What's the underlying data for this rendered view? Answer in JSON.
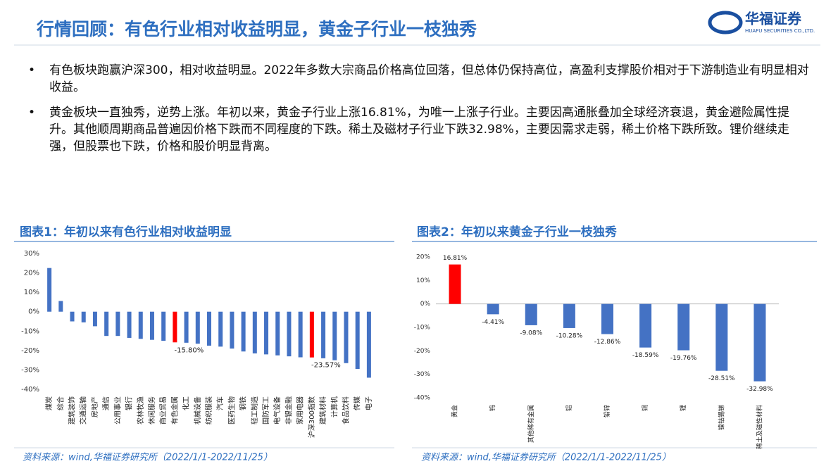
{
  "header": {
    "title": "行情回顾：有色行业相对收益明显，黄金子行业一枝独秀",
    "logo_name": "华福证券",
    "logo_sub": "HUAFU SECURITIES CO.,LTD."
  },
  "bullets": [
    "有色板块跑赢沪深300，相对收益明显。2022年多数大宗商品价格高位回落，但总体仍保持高位，高盈利支撑股价相对于下游制造业有明显相对收益。",
    "黄金板块一直独秀，逆势上涨。年初以来，黄金子行业上涨16.81%，为唯一上涨子行业。主要因高通胀叠加全球经济衰退，黄金避险属性提升。其他顺周期商品普遍因价格下跌而不同程度的下跌。稀土及磁材子行业下跌32.98%，主要因需求走弱，稀土价格下跌所致。锂价继续走强，但股票也下跌，价格和股价明显背离。"
  ],
  "chart_data": [
    {
      "type": "bar",
      "title": "图表1：年初以来有色行业相对收益明显",
      "source": "资料来源：wind,华福证券研究所（2022/1/1-2022/11/25）",
      "categories": [
        "煤炭",
        "综合",
        "建筑装饰",
        "交通运输",
        "房地产",
        "通信",
        "公用事业",
        "银行",
        "农林牧渔",
        "休闲服务",
        "商业贸易",
        "有色金属",
        "化工",
        "机械设备",
        "纺织服装",
        "汽车",
        "医药生物",
        "钢铁",
        "轻工制造",
        "国防军工",
        "电气设备",
        "非银金融",
        "家用电器",
        "沪深300指数",
        "建筑材料",
        "计算机",
        "食品饮料",
        "传媒",
        "电子"
      ],
      "values": [
        22.5,
        5.5,
        -5,
        -5.5,
        -7.5,
        -12.5,
        -12.5,
        -13.5,
        -14,
        -14.5,
        -15,
        -15.8,
        -16,
        -16.5,
        -17.5,
        -18,
        -19,
        -20.5,
        -21.5,
        -22,
        -22.5,
        -23,
        -23.5,
        -23.57,
        -24,
        -25,
        -26.5,
        -29.5,
        -34
      ],
      "value_labels": [
        null,
        null,
        null,
        null,
        null,
        null,
        null,
        null,
        null,
        null,
        null,
        "-15.80%",
        null,
        null,
        null,
        null,
        null,
        null,
        null,
        null,
        null,
        null,
        null,
        "-23.57%",
        null,
        null,
        null,
        null,
        null
      ],
      "colors": [
        "#4472c4",
        "#4472c4",
        "#4472c4",
        "#4472c4",
        "#4472c4",
        "#4472c4",
        "#4472c4",
        "#4472c4",
        "#4472c4",
        "#4472c4",
        "#4472c4",
        "#ff0000",
        "#4472c4",
        "#4472c4",
        "#4472c4",
        "#4472c4",
        "#4472c4",
        "#4472c4",
        "#4472c4",
        "#4472c4",
        "#4472c4",
        "#4472c4",
        "#4472c4",
        "#ff0000",
        "#4472c4",
        "#4472c4",
        "#4472c4",
        "#4472c4",
        "#4472c4"
      ],
      "ylim": [
        -40,
        30
      ],
      "yticks": [
        {
          "value": 30,
          "label": "30%"
        },
        {
          "value": 20,
          "label": "20%"
        },
        {
          "value": 10,
          "label": "10%"
        },
        {
          "value": 0,
          "label": "0%"
        },
        {
          "value": -10,
          "label": "-10%"
        },
        {
          "value": -20,
          "label": "-20%"
        },
        {
          "value": -30,
          "label": "-30%"
        },
        {
          "value": -40,
          "label": "-40%"
        }
      ]
    },
    {
      "type": "bar",
      "title": "图表2：年初以来黄金子行业一枝独秀",
      "source": "资料来源：wind,华福证券研究所（2022/1/1-2022/11/25）",
      "categories": [
        "黄金",
        "钨",
        "其他稀有金属",
        "铝",
        "铅锌",
        "铜",
        "锂",
        "镍钴锡锑",
        "稀土及磁性材料"
      ],
      "values": [
        16.81,
        -4.41,
        -9.08,
        -10.28,
        -12.86,
        -18.59,
        -19.76,
        -28.51,
        -32.98
      ],
      "value_labels": [
        "16.81%",
        "-4.41%",
        "-9.08%",
        "-10.28%",
        "-12.86%",
        "-18.59%",
        "-19.76%",
        "-28.51%",
        "-32.98%"
      ],
      "colors": [
        "#ff0000",
        "#4472c4",
        "#4472c4",
        "#4472c4",
        "#4472c4",
        "#4472c4",
        "#4472c4",
        "#4472c4",
        "#4472c4"
      ],
      "ylim": [
        -40,
        20
      ],
      "yticks": [
        {
          "value": 20,
          "label": "20%"
        },
        {
          "value": 10,
          "label": "10%"
        },
        {
          "value": 0,
          "label": "0%"
        },
        {
          "value": -10,
          "label": "-10%"
        },
        {
          "value": -20,
          "label": "-20%"
        },
        {
          "value": -30,
          "label": "-30%"
        },
        {
          "value": -40,
          "label": "-40%"
        }
      ]
    }
  ]
}
